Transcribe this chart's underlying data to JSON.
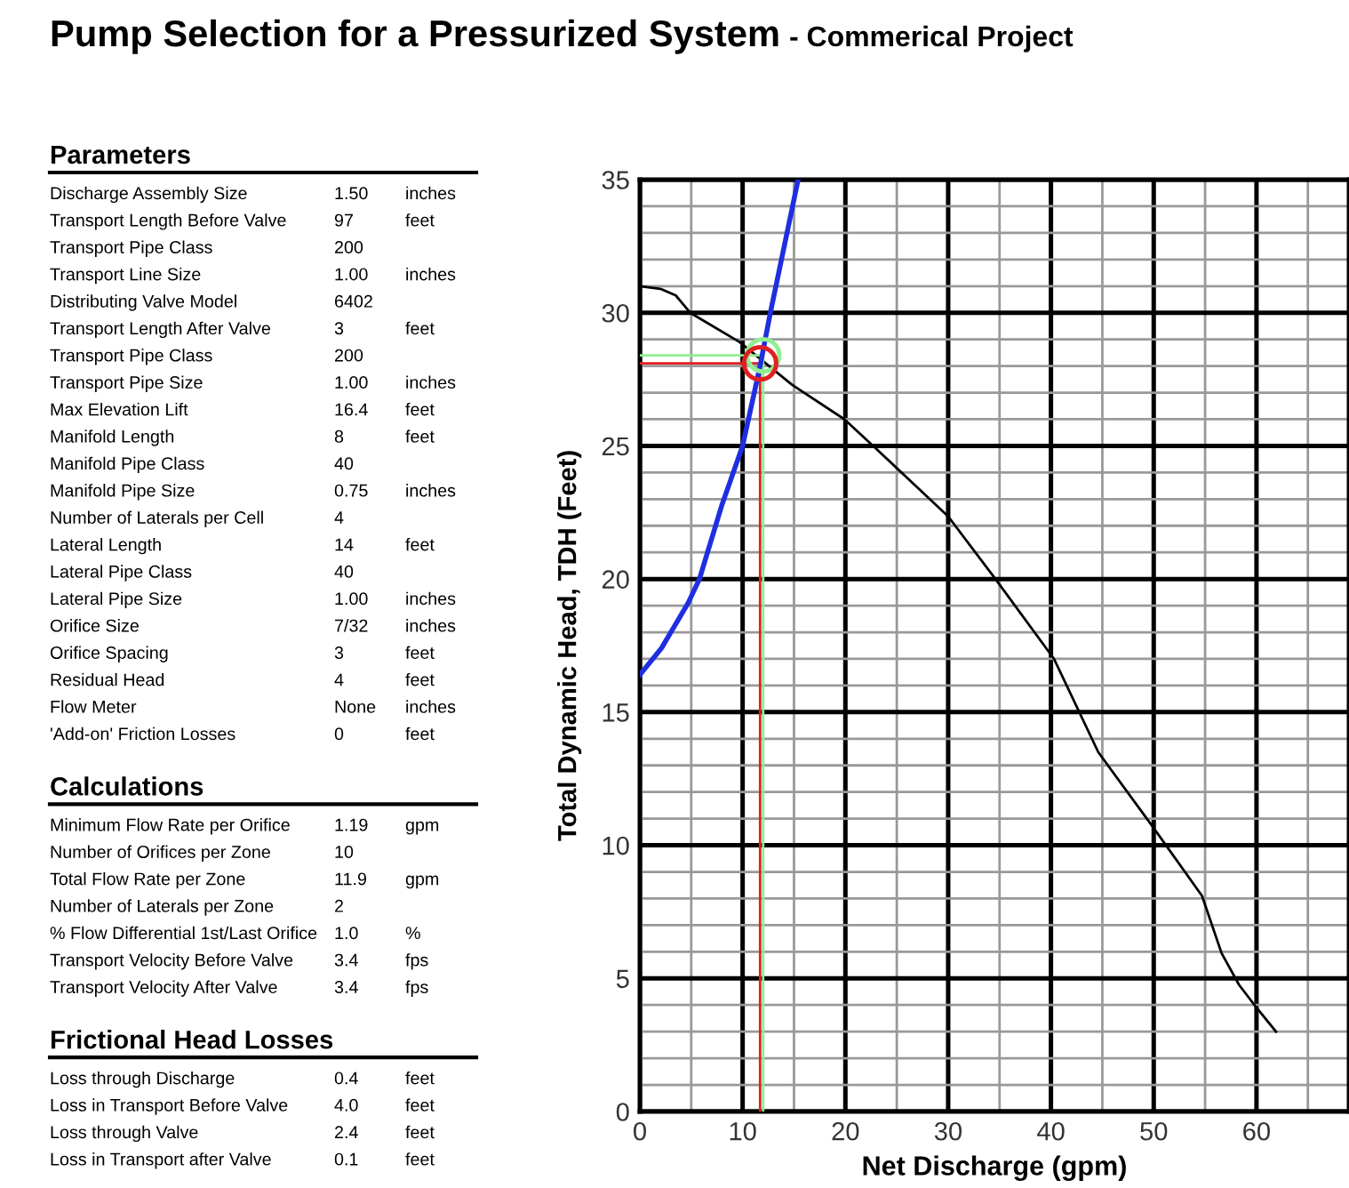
{
  "chart_data": {
    "type": "line",
    "title": "Pump Selection for a Pressurized System",
    "subtitle": "- Commerical Project",
    "xlabel": "Net Discharge (gpm)",
    "ylabel": "Total Dynamic Head, TDH (Feet)",
    "xlim": [
      0,
      69
    ],
    "xticks": [
      0,
      10,
      20,
      30,
      40,
      50,
      60
    ],
    "ylim": [
      0,
      35
    ],
    "yticks": [
      0,
      5,
      10,
      15,
      20,
      25,
      30,
      35
    ],
    "grid": true,
    "series": [
      {
        "color": "#1f2ee0",
        "x": [
          0,
          2.1,
          4.7,
          5.8,
          8,
          10,
          11.7,
          12.7,
          15.4
        ],
        "values": [
          16.4,
          17.4,
          19.1,
          20,
          22.8,
          25,
          28,
          30,
          35
        ],
        "marker": "none"
      },
      {
        "color": "#000000",
        "x": [
          0,
          2,
          3.5,
          4.9,
          9.7,
          14.8,
          19.9,
          22.7,
          30,
          34.6,
          40.3,
          44.6,
          49.9,
          54.7,
          56.6,
          58.3,
          60,
          61.9
        ],
        "values": [
          31,
          30.9,
          30.65,
          30,
          28.9,
          27.3,
          26,
          25,
          22.35,
          20,
          17,
          13.5,
          10.7,
          8.1,
          5.95,
          4.76,
          3.9,
          3
        ],
        "marker": "none"
      },
      {
        "color": "#90ee90",
        "x": [
          12,
          12,
          0
        ],
        "values": [
          0,
          28.4,
          28.4
        ],
        "marker": "none"
      },
      {
        "color": "#e02020",
        "x": [
          11.7,
          11.7,
          0
        ],
        "values": [
          0,
          28.1,
          28.1
        ],
        "marker": "none"
      },
      {
        "type": "scatter",
        "color": "#90ee90",
        "x": [
          12
        ],
        "values": [
          28.4
        ],
        "marker": "circle"
      },
      {
        "type": "scatter",
        "color": "#e02020",
        "x": [
          11.7
        ],
        "values": [
          28.1
        ],
        "marker": "circle"
      }
    ],
    "annotations": [
      "Parameters",
      "Discharge Assembly Size\t1.50\tinches",
      "Transport Length Before Valve\t97\tfeet",
      "Transport Pipe Class\t200",
      "Transport Line Size\t1.00\tinches",
      "Distributing Valve Model\t6402",
      "Transport Length After Valve\t3\tfeet",
      "Transport Pipe Class\t200",
      "Transport Pipe Size\t1.00\tinches",
      "Max Elevation Lift\t16.4\tfeet",
      "Manifold Length\t8\tfeet",
      "Manifold Pipe Class\t40",
      "Manifold Pipe Size\t0.75\tinches",
      "Number of Laterals per Cell\t4",
      "Lateral Length\t14\tfeet",
      "Lateral Pipe Class\t40",
      "Lateral Pipe Size\t1.00\tinches",
      "Orifice Size\t7/32\tinches",
      "Orifice Spacing\t3\tfeet",
      "Residual Head\t4\tfeet",
      "Flow Meter\tNone\tinches",
      "'Add-on' Friction Losses\t0\tfeet",
      "Calculations",
      "Minimum Flow Rate per Orifice\t1.19\tgpm",
      "Number of Orifices per Zone\t10",
      "Total Flow Rate per Zone\t11.9\tgpm",
      "Number of Laterals per Zone\t2",
      "% Flow Differential 1st/Last Orifice\t1.0\t%",
      "Transport Velocity Before Valve\t3.4\tfps",
      "Transport Velocity After Valve\t3.4\tfps",
      "Frictional Head Losses",
      "Loss through Discharge\t0.4\tfeet",
      "Loss in Transport Before Valve\t4.0\tfeet",
      "Loss through Valve\t2.4\tfeet",
      "Loss in Transport after Valve\t0.1\tfeet"
    ]
  }
}
